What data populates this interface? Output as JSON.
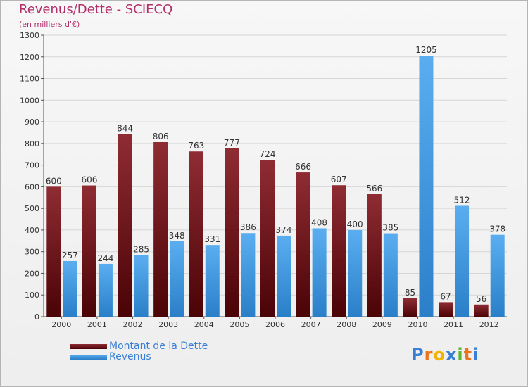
{
  "header": {
    "title": "Revenus/Dette - SCIECQ",
    "subtitle": "(en milliers d'€)"
  },
  "legend": {
    "items": [
      {
        "label": "Montant de la Dette",
        "color": "#7a1a1f"
      },
      {
        "label": "Revenus",
        "color": "#3a94de"
      }
    ]
  },
  "logo": {
    "letters": [
      "P",
      "r",
      "o",
      "x",
      "i",
      "t",
      "i"
    ],
    "colors": [
      "#3a7fd4",
      "#e8741c",
      "#f0b400",
      "#3a7fd4",
      "#5cb82c",
      "#e8741c",
      "#3a7fd4"
    ]
  },
  "chart_data": {
    "type": "bar",
    "title": "Revenus/Dette - SCIECQ",
    "ylabel": "(en milliers d'€)",
    "xlabel": "",
    "categories": [
      "2000",
      "2001",
      "2002",
      "2003",
      "2004",
      "2005",
      "2006",
      "2007",
      "2008",
      "2009",
      "2010",
      "2011",
      "2012"
    ],
    "series": [
      {
        "name": "Montant de la Dette",
        "color": "#7a1a1f",
        "values": [
          600,
          606,
          844,
          806,
          763,
          777,
          724,
          666,
          607,
          566,
          85,
          67,
          56
        ]
      },
      {
        "name": "Revenus",
        "color": "#3a94de",
        "values": [
          257,
          244,
          285,
          348,
          331,
          386,
          374,
          408,
          400,
          385,
          1205,
          512,
          378
        ]
      }
    ],
    "ylim": [
      0,
      1300
    ],
    "yticks": [
      0,
      100,
      200,
      300,
      400,
      500,
      600,
      700,
      800,
      900,
      1000,
      1100,
      1200,
      1300
    ],
    "grid": true,
    "legend_position": "bottom-left"
  }
}
